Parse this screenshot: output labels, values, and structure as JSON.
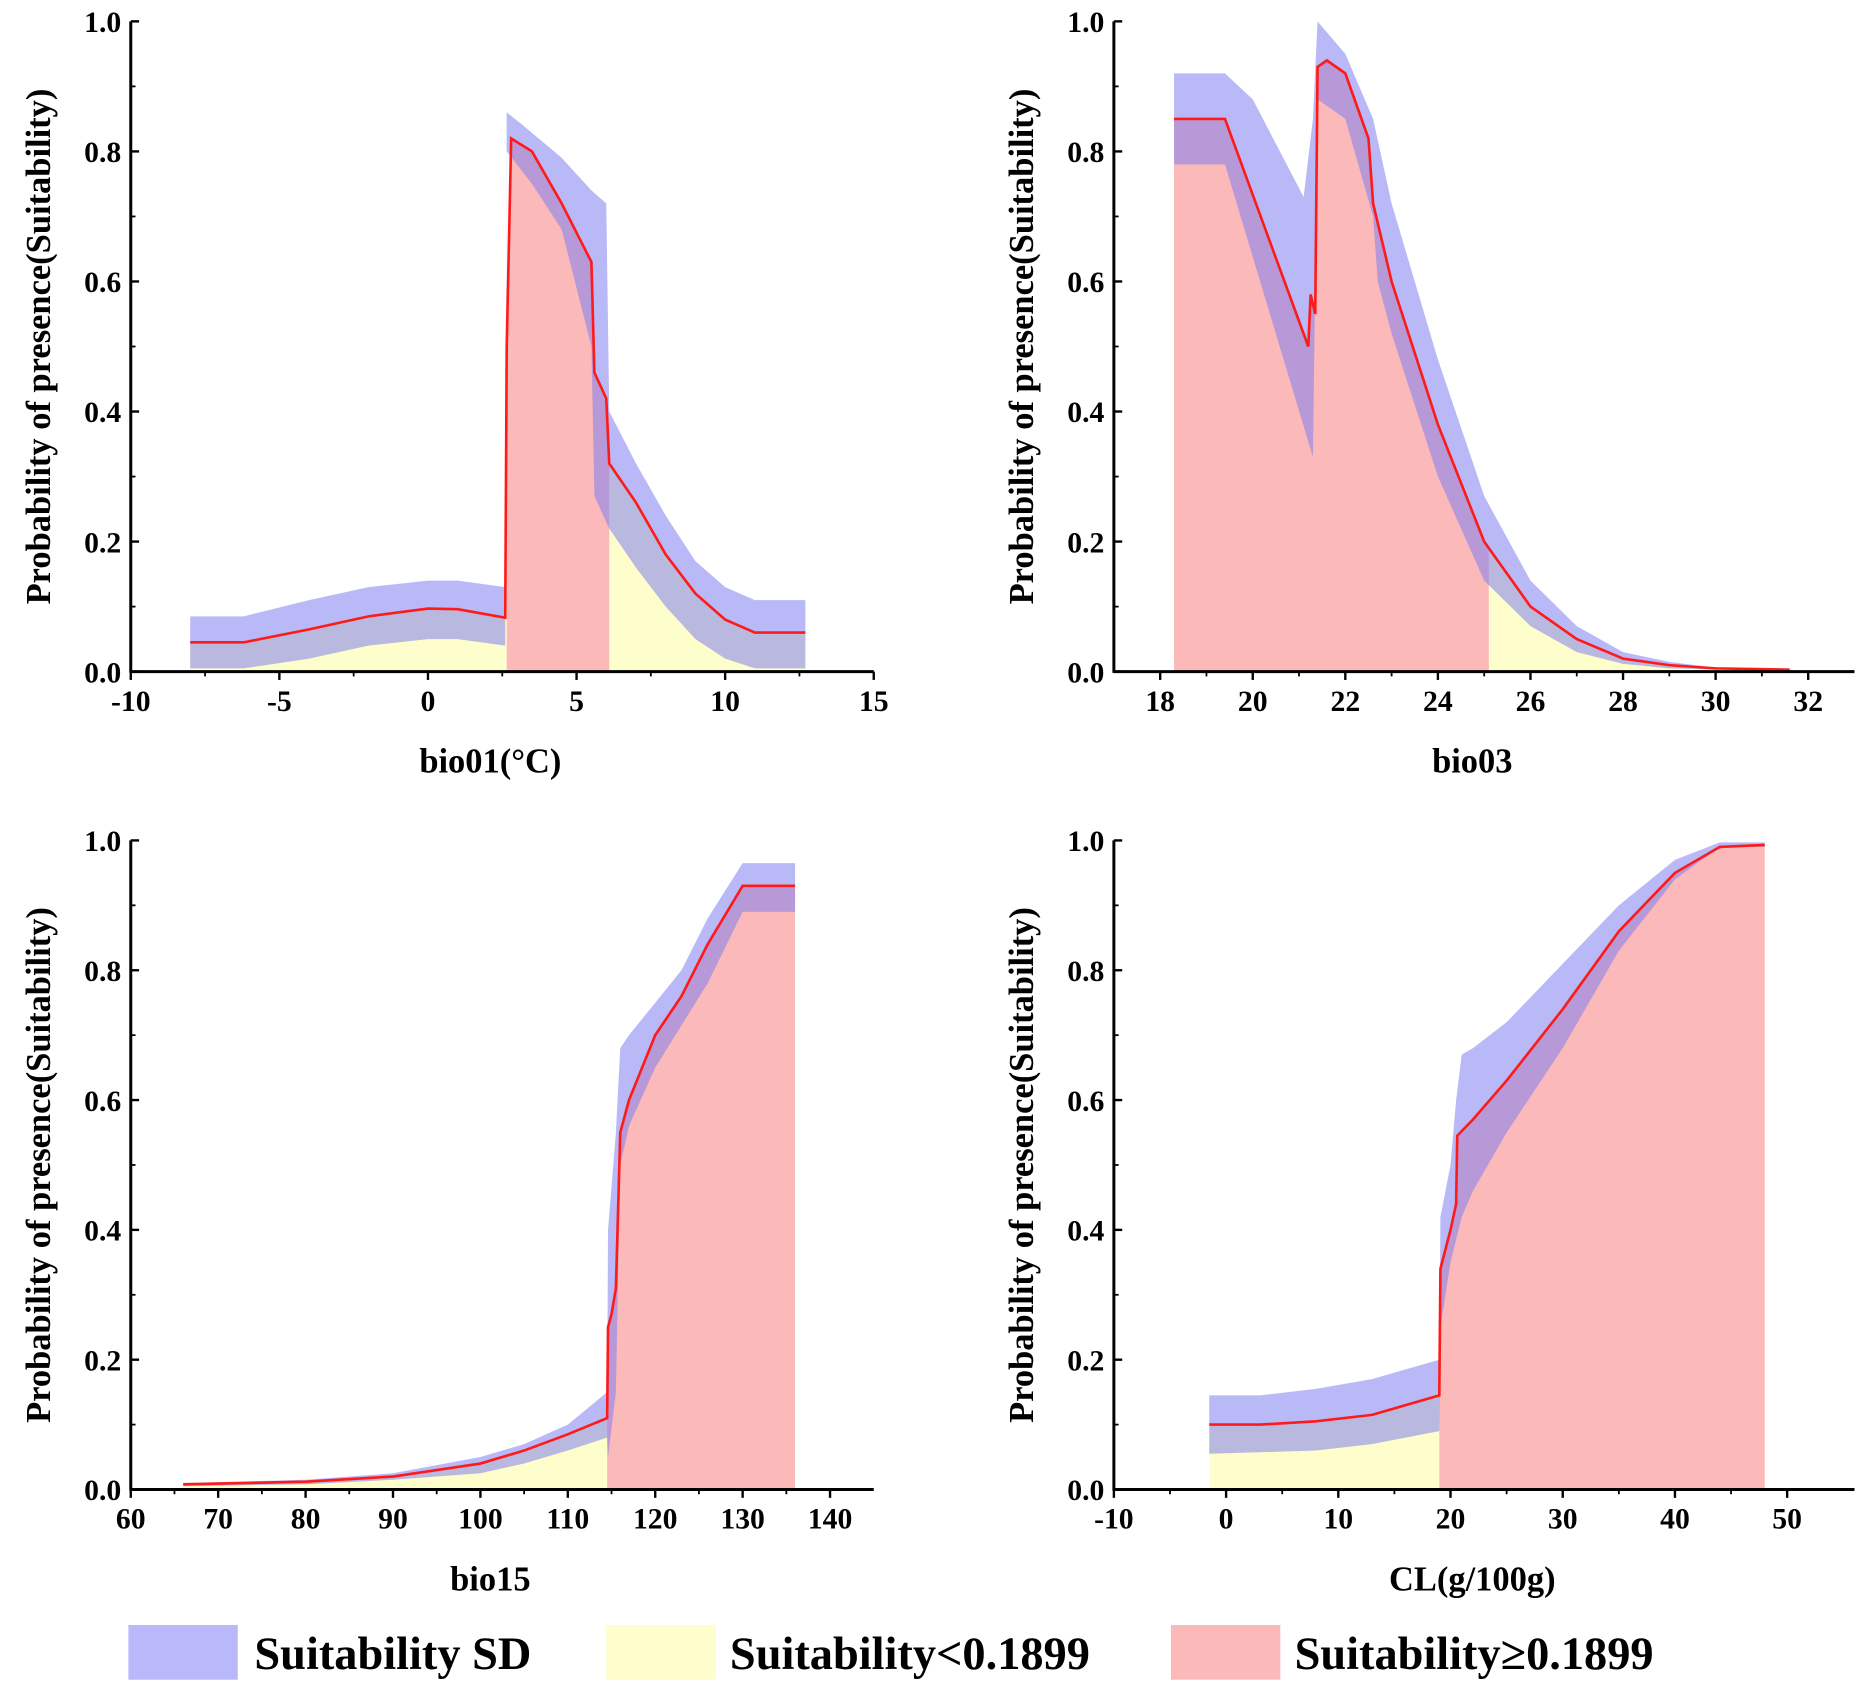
{
  "legend": {
    "items": [
      {
        "label": "Suitability SD",
        "color": "#b8b8fa"
      },
      {
        "label": "Suitability<0.1899",
        "color": "#fefecc"
      },
      {
        "label": "Suitability≥0.1899",
        "color": "#fbb9b9"
      }
    ]
  },
  "colors": {
    "mean_line": "#ff1a1a",
    "sd_band": "#8080f0",
    "low": "#fefecc",
    "high": "#fbb9b9"
  },
  "chart_data": [
    {
      "type": "area",
      "title": "",
      "xlabel": "bio01(°C)",
      "ylabel": "Probability of presence(Suitability)",
      "xlim": [
        -10,
        15
      ],
      "ylim": [
        0,
        1.0
      ],
      "xticks": [
        -10,
        -5,
        0,
        5,
        10,
        15
      ],
      "yticks": [
        "0.0",
        "0.2",
        "0.4",
        "0.6",
        "0.8",
        "1.0"
      ],
      "threshold": 0.1899,
      "high_range": [
        2.65,
        6.1
      ],
      "mean": [
        [
          -8,
          0.045
        ],
        [
          -6.2,
          0.045
        ],
        [
          -4,
          0.065
        ],
        [
          -2,
          0.085
        ],
        [
          0,
          0.097
        ],
        [
          1,
          0.096
        ],
        [
          2.6,
          0.083
        ],
        [
          2.65,
          0.5
        ],
        [
          2.8,
          0.82
        ],
        [
          3.5,
          0.8
        ],
        [
          4.5,
          0.72
        ],
        [
          5.5,
          0.63
        ],
        [
          5.6,
          0.46
        ],
        [
          6,
          0.42
        ],
        [
          6.1,
          0.32
        ],
        [
          7,
          0.26
        ],
        [
          8,
          0.18
        ],
        [
          9,
          0.12
        ],
        [
          10,
          0.08
        ],
        [
          11,
          0.06
        ],
        [
          12.7,
          0.06
        ]
      ],
      "upper": [
        [
          -8,
          0.085
        ],
        [
          -6.2,
          0.085
        ],
        [
          -4,
          0.11
        ],
        [
          -2,
          0.13
        ],
        [
          0,
          0.14
        ],
        [
          1,
          0.14
        ],
        [
          2.6,
          0.13
        ],
        [
          2.65,
          0.86
        ],
        [
          3.2,
          0.84
        ],
        [
          4.5,
          0.79
        ],
        [
          5.5,
          0.74
        ],
        [
          6,
          0.72
        ],
        [
          6.1,
          0.4
        ],
        [
          7,
          0.32
        ],
        [
          8,
          0.24
        ],
        [
          9,
          0.17
        ],
        [
          10,
          0.13
        ],
        [
          11,
          0.11
        ],
        [
          12.7,
          0.11
        ]
      ],
      "lower": [
        [
          -8,
          0.005
        ],
        [
          -6.2,
          0.005
        ],
        [
          -4,
          0.02
        ],
        [
          -2,
          0.04
        ],
        [
          0,
          0.05
        ],
        [
          1,
          0.05
        ],
        [
          2.6,
          0.04
        ],
        [
          2.65,
          0.8
        ],
        [
          3.5,
          0.75
        ],
        [
          4.5,
          0.68
        ],
        [
          5.5,
          0.5
        ],
        [
          5.6,
          0.27
        ],
        [
          6,
          0.23
        ],
        [
          6.1,
          0.22
        ],
        [
          7,
          0.16
        ],
        [
          8,
          0.1
        ],
        [
          9,
          0.05
        ],
        [
          10,
          0.02
        ],
        [
          11,
          0.005
        ],
        [
          12.7,
          0.005
        ]
      ]
    },
    {
      "type": "area",
      "title": "",
      "xlabel": "bio03",
      "ylabel": "Probability of presence(Suitability)",
      "xlim": [
        17,
        33
      ],
      "ylim": [
        0,
        1.0
      ],
      "xticks": [
        18,
        20,
        22,
        24,
        26,
        28,
        30,
        32
      ],
      "yticks": [
        "0.0",
        "0.2",
        "0.4",
        "0.6",
        "0.8",
        "1.0"
      ],
      "threshold": 0.1899,
      "high_range": [
        18.3,
        25.1
      ],
      "mean": [
        [
          18.3,
          0.85
        ],
        [
          19.4,
          0.85
        ],
        [
          21.2,
          0.5
        ],
        [
          21.25,
          0.58
        ],
        [
          21.35,
          0.55
        ],
        [
          21.4,
          0.93
        ],
        [
          21.6,
          0.94
        ],
        [
          22,
          0.92
        ],
        [
          22.5,
          0.82
        ],
        [
          22.6,
          0.72
        ],
        [
          23,
          0.6
        ],
        [
          24,
          0.38
        ],
        [
          25,
          0.2
        ],
        [
          26,
          0.1
        ],
        [
          27,
          0.05
        ],
        [
          28,
          0.02
        ],
        [
          29,
          0.01
        ],
        [
          30,
          0.005
        ],
        [
          31.6,
          0.003
        ]
      ],
      "upper": [
        [
          18.3,
          0.92
        ],
        [
          19.4,
          0.92
        ],
        [
          20,
          0.88
        ],
        [
          21.1,
          0.73
        ],
        [
          21.3,
          0.85
        ],
        [
          21.4,
          1.0
        ],
        [
          22,
          0.95
        ],
        [
          22.6,
          0.85
        ],
        [
          23,
          0.72
        ],
        [
          24,
          0.48
        ],
        [
          25,
          0.27
        ],
        [
          26,
          0.14
        ],
        [
          27,
          0.07
        ],
        [
          28,
          0.03
        ],
        [
          29,
          0.015
        ],
        [
          30,
          0.006
        ],
        [
          31.6,
          0.003
        ]
      ],
      "lower": [
        [
          18.3,
          0.78
        ],
        [
          19.4,
          0.78
        ],
        [
          21.3,
          0.33
        ],
        [
          21.4,
          0.88
        ],
        [
          22,
          0.85
        ],
        [
          22.6,
          0.7
        ],
        [
          22.7,
          0.6
        ],
        [
          23,
          0.52
        ],
        [
          24,
          0.3
        ],
        [
          25,
          0.14
        ],
        [
          26,
          0.07
        ],
        [
          27,
          0.03
        ],
        [
          28,
          0.012
        ],
        [
          29,
          0.005
        ],
        [
          31.6,
          0.001
        ]
      ]
    },
    {
      "type": "area",
      "title": "",
      "xlabel": "bio15",
      "ylabel": "Probability of presence(Suitability)",
      "xlim": [
        60,
        145
      ],
      "ylim": [
        0,
        1.0
      ],
      "xticks": [
        60,
        70,
        80,
        90,
        100,
        110,
        120,
        130,
        140
      ],
      "yticks": [
        "0.0",
        "0.2",
        "0.4",
        "0.6",
        "0.8",
        "1.0"
      ],
      "threshold": 0.1899,
      "high_range": [
        114.5,
        136
      ],
      "mean": [
        [
          66,
          0.008
        ],
        [
          80,
          0.012
        ],
        [
          90,
          0.02
        ],
        [
          100,
          0.04
        ],
        [
          105,
          0.06
        ],
        [
          110,
          0.085
        ],
        [
          114.5,
          0.11
        ],
        [
          114.6,
          0.25
        ],
        [
          115,
          0.27
        ],
        [
          115.5,
          0.31
        ],
        [
          116,
          0.55
        ],
        [
          117,
          0.6
        ],
        [
          120,
          0.7
        ],
        [
          123,
          0.76
        ],
        [
          126,
          0.84
        ],
        [
          130,
          0.93
        ],
        [
          136,
          0.93
        ]
      ],
      "upper": [
        [
          66,
          0.01
        ],
        [
          80,
          0.015
        ],
        [
          90,
          0.025
        ],
        [
          100,
          0.05
        ],
        [
          105,
          0.07
        ],
        [
          110,
          0.1
        ],
        [
          114.5,
          0.15
        ],
        [
          114.6,
          0.4
        ],
        [
          115.5,
          0.55
        ],
        [
          116,
          0.68
        ],
        [
          117,
          0.7
        ],
        [
          120,
          0.75
        ],
        [
          123,
          0.8
        ],
        [
          126,
          0.88
        ],
        [
          130,
          0.965
        ],
        [
          136,
          0.965
        ]
      ],
      "lower": [
        [
          66,
          0.005
        ],
        [
          80,
          0.008
        ],
        [
          90,
          0.015
        ],
        [
          100,
          0.025
        ],
        [
          105,
          0.04
        ],
        [
          110,
          0.06
        ],
        [
          114.5,
          0.08
        ],
        [
          114.6,
          0.05
        ],
        [
          115.5,
          0.15
        ],
        [
          116,
          0.5
        ],
        [
          117,
          0.56
        ],
        [
          120,
          0.65
        ],
        [
          126,
          0.78
        ],
        [
          130,
          0.89
        ],
        [
          136,
          0.89
        ]
      ]
    },
    {
      "type": "area",
      "title": "",
      "xlabel": "CL(g/100g)",
      "ylabel": "Probability of presence(Suitability)",
      "xlim": [
        -10,
        56
      ],
      "ylim": [
        0,
        1.0
      ],
      "xticks": [
        -10,
        0,
        10,
        20,
        30,
        40,
        50
      ],
      "yticks": [
        "0.0",
        "0.2",
        "0.4",
        "0.6",
        "0.8",
        "1.0"
      ],
      "threshold": 0.1899,
      "high_range": [
        19,
        48
      ],
      "mean": [
        [
          -1.5,
          0.1
        ],
        [
          3,
          0.1
        ],
        [
          8,
          0.105
        ],
        [
          13,
          0.115
        ],
        [
          19,
          0.145
        ],
        [
          19.1,
          0.34
        ],
        [
          20,
          0.4
        ],
        [
          20.5,
          0.44
        ],
        [
          20.6,
          0.545
        ],
        [
          22,
          0.57
        ],
        [
          25,
          0.63
        ],
        [
          30,
          0.74
        ],
        [
          35,
          0.86
        ],
        [
          40,
          0.95
        ],
        [
          44,
          0.99
        ],
        [
          48,
          0.993
        ]
      ],
      "upper": [
        [
          -1.5,
          0.145
        ],
        [
          3,
          0.145
        ],
        [
          8,
          0.155
        ],
        [
          13,
          0.17
        ],
        [
          19,
          0.2
        ],
        [
          19.1,
          0.42
        ],
        [
          20,
          0.5
        ],
        [
          20.5,
          0.6
        ],
        [
          21,
          0.67
        ],
        [
          22,
          0.68
        ],
        [
          25,
          0.72
        ],
        [
          30,
          0.81
        ],
        [
          35,
          0.9
        ],
        [
          40,
          0.97
        ],
        [
          44,
          0.997
        ],
        [
          48,
          0.997
        ]
      ],
      "lower": [
        [
          -1.5,
          0.055
        ],
        [
          8,
          0.06
        ],
        [
          13,
          0.07
        ],
        [
          19,
          0.09
        ],
        [
          19.1,
          0.25
        ],
        [
          20,
          0.35
        ],
        [
          21,
          0.42
        ],
        [
          22,
          0.46
        ],
        [
          25,
          0.55
        ],
        [
          30,
          0.68
        ],
        [
          35,
          0.83
        ],
        [
          40,
          0.94
        ],
        [
          44,
          0.99
        ],
        [
          48,
          0.99
        ]
      ]
    }
  ]
}
